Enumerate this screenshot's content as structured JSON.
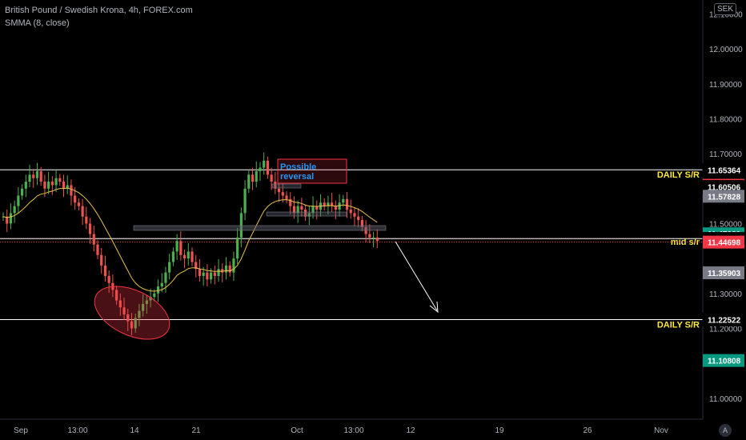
{
  "header": {
    "title": "British Pound / Swedish Krona, 4h, FOREX.com",
    "indicator": "SMMA (8, close)",
    "currency": "SEK"
  },
  "chart_data": {
    "type": "candlestick",
    "symbol": "GBPSEK",
    "timeframe": "4h",
    "y_ticks": [
      "12.10000",
      "12.00000",
      "11.90000",
      "11.80000",
      "11.70000",
      "11.50000",
      "11.30000",
      "11.20000",
      "11.00000"
    ],
    "ylim": [
      10.94,
      12.14
    ],
    "x_ticks": [
      "Sep",
      "13:00",
      "14",
      "21",
      "Oct",
      "13:00",
      "12",
      "19",
      "26",
      "Nov"
    ],
    "price_labels": [
      {
        "value": "11.65364",
        "color": "#000000",
        "text_color": "#ffffff"
      },
      {
        "value": "11.60971",
        "color": "#f23645",
        "text_color": "#ffffff"
      },
      {
        "value": "11.60506",
        "color": "#000000",
        "text_color": "#ffffff"
      },
      {
        "value": "11.57828",
        "color": "#787b86",
        "text_color": "#ffffff"
      },
      {
        "value": "11.47080",
        "color": "#089981",
        "text_color": "#ffffff"
      },
      {
        "value": "11.45629",
        "color": "#000000",
        "text_color": "#ffffff"
      },
      {
        "value": "11.44698",
        "color": "#f23645",
        "text_color": "#ffffff"
      },
      {
        "value": "11.35903",
        "color": "#787b86",
        "text_color": "#ffffff"
      },
      {
        "value": "11.22522",
        "color": "#000000",
        "text_color": "#ffffff"
      },
      {
        "value": "11.10808",
        "color": "#089981",
        "text_color": "#ffffff"
      }
    ],
    "levels": [
      {
        "label": "DAILY S/R",
        "price": 11.654,
        "color": "#ffffff",
        "label_color": "#ffeb3b"
      },
      {
        "label": "mid s/r",
        "price": 11.457,
        "color": "#ffffff",
        "label_color": "#ffeb3b"
      },
      {
        "label": "DAILY S/R",
        "price": 11.225,
        "color": "#ffffff",
        "label_color": "#ffeb3b"
      }
    ],
    "current_price": 11.447,
    "annotations": [
      {
        "text": "Possible reversal",
        "color": "#2196f3",
        "border": "#f23645"
      }
    ],
    "colors": {
      "up": "#4caf50",
      "down": "#ef5350",
      "smma": "#e6c34a",
      "background": "#000000"
    },
    "candles_close": [
      11.52,
      11.5,
      11.53,
      11.55,
      11.58,
      11.6,
      11.62,
      11.64,
      11.63,
      11.65,
      11.62,
      11.6,
      11.62,
      11.61,
      11.63,
      11.62,
      11.6,
      11.61,
      11.58,
      11.56,
      11.55,
      11.52,
      11.5,
      11.47,
      11.44,
      11.41,
      11.38,
      11.35,
      11.33,
      11.31,
      11.28,
      11.26,
      11.24,
      11.22,
      11.2,
      11.23,
      11.25,
      11.27,
      11.28,
      11.29,
      11.3,
      11.32,
      11.33,
      11.36,
      11.39,
      11.42,
      11.45,
      11.41,
      11.4,
      11.42,
      11.39,
      11.37,
      11.35,
      11.36,
      11.34,
      11.36,
      11.35,
      11.37,
      11.36,
      11.38,
      11.36,
      11.4,
      11.46,
      11.53,
      11.6,
      11.64,
      11.62,
      11.65,
      11.66,
      11.68,
      11.64,
      11.62,
      11.6,
      11.59,
      11.58,
      11.57,
      11.55,
      11.53,
      11.55,
      11.54,
      11.52,
      11.53,
      11.55,
      11.54,
      11.56,
      11.55,
      11.56,
      11.55,
      11.54,
      11.56,
      11.57,
      11.54,
      11.53,
      11.52,
      11.51,
      11.49,
      11.47,
      11.46,
      11.46,
      11.45
    ]
  }
}
